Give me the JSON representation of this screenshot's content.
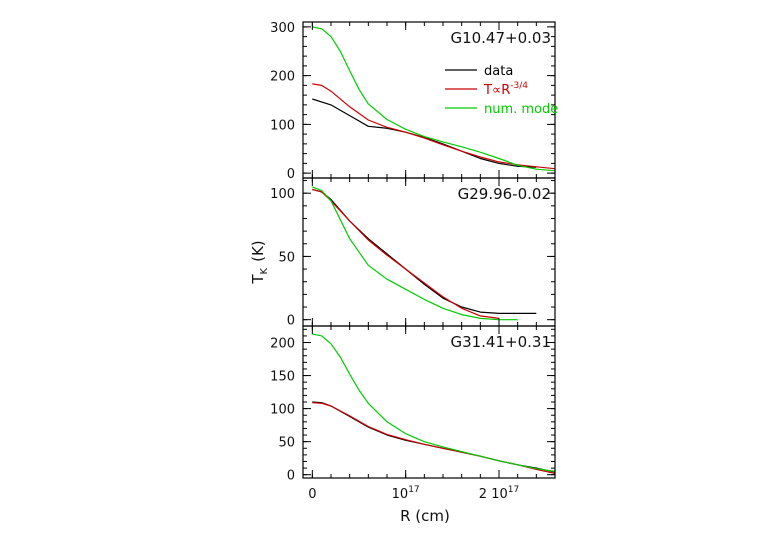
{
  "chart_data": {
    "type": "line",
    "xlabel": "R (cm)",
    "ylabel": "T_K (K)",
    "ylabel_main": "T",
    "ylabel_sub": "K",
    "ylabel_unit": "(K)",
    "xlim": [
      -1e+16,
      2.6e+17
    ],
    "x_ticks": [
      {
        "value": 0,
        "base": "0",
        "exp": ""
      },
      {
        "value": 1e+17,
        "base": "10",
        "exp": "17"
      },
      {
        "value": 2e+17,
        "base": "2 10",
        "exp": "17"
      }
    ],
    "legend": [
      {
        "label": "data",
        "color": "#000000"
      },
      {
        "label": "T∝R",
        "sup": "-3/4",
        "color": "#cc0000"
      },
      {
        "label": "num. mode",
        "color": "#00cc00"
      }
    ],
    "colors": {
      "data": "#000000",
      "powerlaw": "#cc0000",
      "model": "#00cc00"
    },
    "panels": [
      {
        "title": "G10.47+0.03",
        "ylim": [
          -10,
          310
        ],
        "yticks": [
          0,
          100,
          200,
          300
        ],
        "series": [
          {
            "name": "data",
            "x": [
              0,
              0.2,
              0.4,
              0.6,
              0.8,
              1.0,
              1.2,
              1.4,
              1.6,
              1.8,
              2.0,
              2.2,
              2.4
            ],
            "y": [
              152,
              140,
              118,
              96,
              92,
              84,
              73,
              60,
              45,
              30,
              20,
              14,
              12
            ]
          },
          {
            "name": "T∝R^-3/4",
            "x": [
              0,
              0.1,
              0.2,
              0.4,
              0.6,
              0.8,
              1.0,
              1.2,
              1.4,
              1.6,
              1.8,
              2.0,
              2.2,
              2.4,
              2.6
            ],
            "y": [
              183,
              180,
              168,
              136,
              109,
              94,
              84,
              72,
              58,
              45,
              33,
              23,
              17,
              13,
              9
            ]
          },
          {
            "name": "num. model",
            "x": [
              0,
              0.1,
              0.2,
              0.3,
              0.4,
              0.5,
              0.6,
              0.8,
              1.0,
              1.2,
              1.4,
              1.6,
              1.8,
              2.0,
              2.2,
              2.4,
              2.6
            ],
            "y": [
              300,
              296,
              280,
              250,
              210,
              172,
              142,
              110,
              90,
              75,
              64,
              54,
              43,
              30,
              16,
              8,
              5
            ]
          }
        ]
      },
      {
        "title": "G29.96-0.02",
        "ylim": [
          -5,
          112
        ],
        "yticks": [
          0,
          50,
          100
        ],
        "series": [
          {
            "name": "data",
            "x": [
              0,
              0.1,
              0.2,
              0.4,
              0.6,
              0.8,
              1.0,
              1.2,
              1.4,
              1.6,
              1.8,
              2.0,
              2.2,
              2.4
            ],
            "y": [
              103,
              101,
              95,
              78,
              64,
              52,
              40,
              28,
              17,
              10,
              6,
              5,
              5,
              5
            ]
          },
          {
            "name": "T∝R^-3/4",
            "x": [
              0,
              0.1,
              0.2,
              0.4,
              0.6,
              0.8,
              1.0,
              1.2,
              1.4,
              1.6,
              1.8,
              2.0
            ],
            "y": [
              103,
              101,
              94,
              78,
              63,
              51,
              40,
              29,
              18,
              9,
              3,
              1
            ]
          },
          {
            "name": "num. model",
            "x": [
              0,
              0.1,
              0.2,
              0.3,
              0.4,
              0.6,
              0.8,
              1.0,
              1.2,
              1.4,
              1.6,
              1.8,
              2.0,
              2.2
            ],
            "y": [
              105,
              102,
              94,
              79,
              64,
              43,
              32,
              24,
              16,
              9,
              4,
              1,
              0,
              0
            ]
          }
        ]
      },
      {
        "title": "G31.41+0.31",
        "ylim": [
          -5,
          225
        ],
        "yticks": [
          0,
          50,
          100,
          150,
          200
        ],
        "series": [
          {
            "name": "data",
            "x": [
              0,
              0.1,
              0.2,
              0.4,
              0.6,
              0.8,
              1.0,
              1.2,
              1.4,
              1.6,
              1.8,
              2.0,
              2.2,
              2.4,
              2.6
            ],
            "y": [
              110,
              109,
              104,
              88,
              72,
              60,
              52,
              46,
              40,
              34,
              28,
              21,
              15,
              10,
              4
            ]
          },
          {
            "name": "T∝R^-3/4",
            "x": [
              0,
              0.1,
              0.2,
              0.4,
              0.6,
              0.8,
              1.0,
              1.2,
              1.4,
              1.6,
              1.8,
              2.0,
              2.2,
              2.4,
              2.6
            ],
            "y": [
              109,
              108,
              104,
              89,
              73,
              61,
              53,
              46,
              40,
              34,
              28,
              21,
              15,
              8,
              2
            ]
          },
          {
            "name": "num. model",
            "x": [
              0,
              0.1,
              0.2,
              0.3,
              0.4,
              0.5,
              0.6,
              0.8,
              1.0,
              1.2,
              1.4,
              1.6,
              1.8,
              2.0,
              2.2,
              2.4,
              2.6
            ],
            "y": [
              213,
              210,
              198,
              178,
              152,
              128,
              108,
              80,
              62,
              50,
              42,
              35,
              28,
              21,
              15,
              9,
              5
            ]
          }
        ]
      }
    ]
  }
}
